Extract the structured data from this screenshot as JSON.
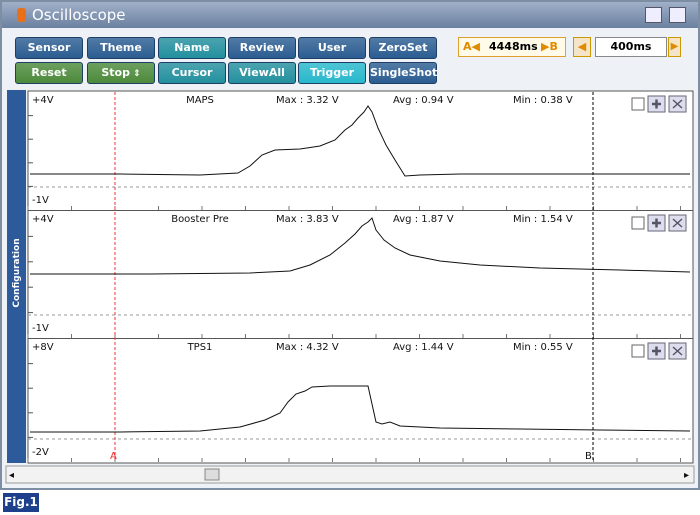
{
  "title": "Oscilloscope",
  "buttons": [
    [
      "Sensor",
      "Theme",
      "Name",
      "Review",
      "User Setting",
      "ZeroSet"
    ],
    [
      "Reset",
      "Stop",
      "Cursor",
      "ViewAll",
      "Trigger",
      "SingleShot"
    ]
  ],
  "cursor_time": {
    "a": "A",
    "value": "4448ms",
    "b": "B"
  },
  "time_div": "400ms",
  "side_tab": "Configuration",
  "channels": [
    {
      "top": "+4V",
      "bottom": "-1V",
      "name": "MAPS",
      "max": "Max : 3.32 V",
      "avg": "Avg : 0.94 V",
      "min": "Min : 0.38 V"
    },
    {
      "top": "+4V",
      "bottom": "-1V",
      "name": "Booster Pre",
      "max": "Max : 3.83 V",
      "avg": "Avg : 1.87 V",
      "min": "Min : 1.54 V"
    },
    {
      "top": "+8V",
      "bottom": "-2V",
      "name": "TPS1",
      "max": "Max : 4.32 V",
      "avg": "Avg : 1.44 V",
      "min": "Min : 0.55 V"
    }
  ],
  "cursors": [
    "A",
    "B"
  ],
  "figure_label": "Fig.1"
}
